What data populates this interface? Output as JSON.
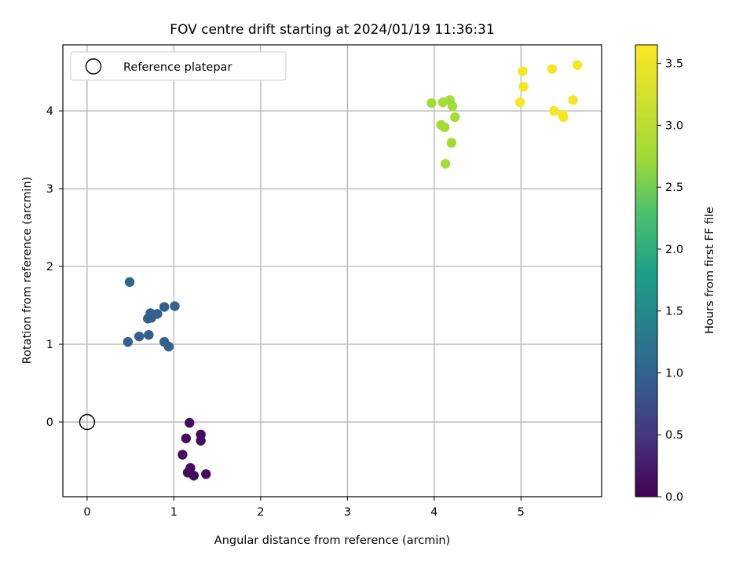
{
  "chart_data": {
    "type": "scatter",
    "title": "FOV centre drift starting at 2024/01/19 11:36:31",
    "xlabel": "Angular distance from reference (arcmin)",
    "ylabel": "Rotation from reference (arcmin)",
    "xlim": [
      -0.28,
      5.93
    ],
    "ylim": [
      -0.96,
      4.85
    ],
    "xticks": [
      0,
      1,
      2,
      3,
      4,
      5
    ],
    "yticks": [
      0,
      1,
      2,
      3,
      4
    ],
    "grid": true,
    "legend": {
      "position": "top-left",
      "entries": [
        "Reference platepar"
      ]
    },
    "reference_point": {
      "x": 0,
      "y": 0
    },
    "colorbar": {
      "label": "Hours from first FF file",
      "colormap": "viridis",
      "range": [
        0.0,
        3.65
      ],
      "ticks": [
        "0.0",
        "0.5",
        "1.0",
        "1.5",
        "2.0",
        "2.5",
        "3.0",
        "3.5"
      ]
    },
    "points": [
      {
        "x": 1.18,
        "y": -0.01,
        "c": 0.1
      },
      {
        "x": 1.14,
        "y": -0.21,
        "c": 0.1
      },
      {
        "x": 1.31,
        "y": -0.16,
        "c": 0.1
      },
      {
        "x": 1.31,
        "y": -0.24,
        "c": 0.1
      },
      {
        "x": 1.1,
        "y": -0.42,
        "c": 0.1
      },
      {
        "x": 1.19,
        "y": -0.59,
        "c": 0.1
      },
      {
        "x": 1.16,
        "y": -0.65,
        "c": 0.1
      },
      {
        "x": 1.23,
        "y": -0.69,
        "c": 0.1
      },
      {
        "x": 1.37,
        "y": -0.67,
        "c": 0.1
      },
      {
        "x": 0.49,
        "y": 1.8,
        "c": 1.05
      },
      {
        "x": 0.47,
        "y": 1.03,
        "c": 0.95
      },
      {
        "x": 0.6,
        "y": 1.1,
        "c": 0.95
      },
      {
        "x": 0.71,
        "y": 1.12,
        "c": 0.95
      },
      {
        "x": 0.7,
        "y": 1.33,
        "c": 0.95
      },
      {
        "x": 0.74,
        "y": 1.34,
        "c": 0.95
      },
      {
        "x": 0.73,
        "y": 1.4,
        "c": 0.95
      },
      {
        "x": 0.81,
        "y": 1.39,
        "c": 0.95
      },
      {
        "x": 0.89,
        "y": 1.48,
        "c": 0.95
      },
      {
        "x": 1.01,
        "y": 1.49,
        "c": 0.95
      },
      {
        "x": 0.89,
        "y": 1.03,
        "c": 0.95
      },
      {
        "x": 0.94,
        "y": 0.97,
        "c": 0.95
      },
      {
        "x": 3.97,
        "y": 4.1,
        "c": 2.78
      },
      {
        "x": 4.1,
        "y": 4.11,
        "c": 2.78
      },
      {
        "x": 4.18,
        "y": 4.14,
        "c": 2.78
      },
      {
        "x": 4.21,
        "y": 4.06,
        "c": 2.78
      },
      {
        "x": 4.24,
        "y": 3.92,
        "c": 2.78
      },
      {
        "x": 4.08,
        "y": 3.82,
        "c": 2.78
      },
      {
        "x": 4.12,
        "y": 3.79,
        "c": 2.78
      },
      {
        "x": 4.2,
        "y": 3.59,
        "c": 2.78
      },
      {
        "x": 4.13,
        "y": 3.32,
        "c": 2.78
      },
      {
        "x": 5.02,
        "y": 4.51,
        "c": 3.55
      },
      {
        "x": 5.36,
        "y": 4.54,
        "c": 3.55
      },
      {
        "x": 5.65,
        "y": 4.59,
        "c": 3.55
      },
      {
        "x": 5.03,
        "y": 4.31,
        "c": 3.55
      },
      {
        "x": 4.99,
        "y": 4.11,
        "c": 3.55
      },
      {
        "x": 5.6,
        "y": 4.14,
        "c": 3.55
      },
      {
        "x": 5.38,
        "y": 4.0,
        "c": 3.55
      },
      {
        "x": 5.48,
        "y": 3.95,
        "c": 3.55
      },
      {
        "x": 5.49,
        "y": 3.92,
        "c": 3.55
      }
    ]
  }
}
